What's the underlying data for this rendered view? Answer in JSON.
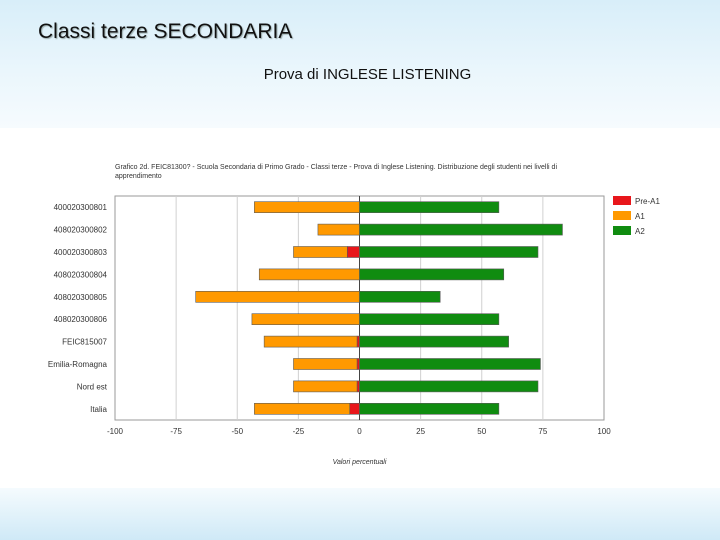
{
  "slide": {
    "title": "Classi terze SECONDARIA",
    "subtitle": "Prova di INGLESE LISTENING"
  },
  "chart_data": {
    "type": "bar",
    "orientation": "horizontal",
    "stacked": "diverging",
    "title": "Grafico 2d. FEIC81300? - Scuola Secondaria di Primo Grado - Classi terze - Prova di Inglese Listening. Distribuzione degli studenti nei livelli di apprendimento",
    "xlabel": "Valori percentuali",
    "ylabel": "",
    "xlim": [
      -100,
      100
    ],
    "x_ticks": [
      -100,
      -75,
      -50,
      -25,
      0,
      25,
      50,
      75,
      100
    ],
    "grid": true,
    "legend_position": "top-right",
    "categories": [
      "400020300801",
      "408020300802",
      "400020300803",
      "408020300804",
      "408020300805",
      "408020300806",
      "FEIC815007",
      "Emilia-Romagna",
      "Nord est",
      "Italia"
    ],
    "series": [
      {
        "name": "Pre-A1",
        "color": "#e8161b",
        "values": [
          0,
          0,
          -5,
          0,
          0,
          0,
          -1,
          -1,
          -1,
          -4
        ]
      },
      {
        "name": "A1",
        "color": "#ff9900",
        "values": [
          -43,
          -17,
          -22,
          -41,
          -67,
          -44,
          -38,
          -26,
          -26,
          -39
        ]
      },
      {
        "name": "A2",
        "color": "#108c10",
        "values": [
          57,
          83,
          73,
          59,
          33,
          57,
          61,
          74,
          73,
          57
        ]
      }
    ]
  }
}
